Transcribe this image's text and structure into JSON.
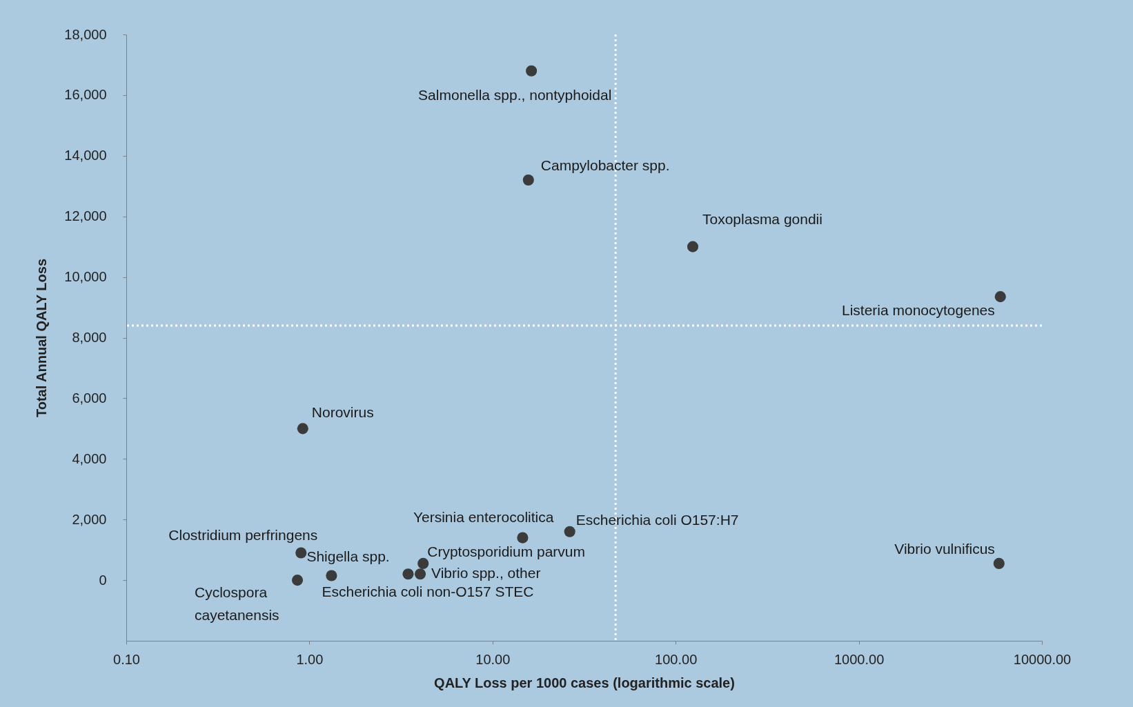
{
  "chart_data": {
    "type": "scatter",
    "xlabel": "QALY Loss per 1000 cases (logarithmic scale)",
    "ylabel": "Total Annual QALY Loss",
    "log": "x",
    "grid": false,
    "marker": "circle",
    "x": [
      16.3,
      15.7,
      124,
      5930,
      0.92,
      14.6,
      26.4,
      0.9,
      0.86,
      1.32,
      3.46,
      4.03,
      4.18,
      5830
    ],
    "series": [
      {
        "color": "#3b3b3b",
        "values": [
          16800,
          13200,
          11000,
          9350,
          5000,
          1400,
          1600,
          900,
          0,
          150,
          200,
          200,
          550,
          550
        ]
      }
    ],
    "xlim": [
      0.1,
      10000
    ],
    "ylim": [
      -2000,
      18000
    ],
    "xticks": [
      {
        "value": 0.1,
        "label": "0.10"
      },
      {
        "value": 1,
        "label": "1.00"
      },
      {
        "value": 10,
        "label": "10.00"
      },
      {
        "value": 100,
        "label": "100.00"
      },
      {
        "value": 1000,
        "label": "1000.00"
      },
      {
        "value": 10000,
        "label": "10000.00"
      }
    ],
    "yticks": [
      0,
      {
        "value": 2000,
        "label": "2,000"
      },
      {
        "value": 4000,
        "label": "4,000"
      },
      {
        "value": 6000,
        "label": "6,000"
      },
      {
        "value": 8000,
        "label": "8,000"
      },
      {
        "value": 10000,
        "label": "10,000"
      },
      {
        "value": 12000,
        "label": "12,000"
      },
      {
        "value": 14000,
        "label": "14,000"
      },
      {
        "value": 16000,
        "label": "16,000"
      },
      {
        "value": 18000,
        "label": "18,000"
      }
    ],
    "ref_lines": [
      {
        "axis": "x",
        "value": 47,
        "color": "#ffffff",
        "line_style": "dotted"
      },
      {
        "axis": "y",
        "value": 8400,
        "color": "#ffffff",
        "line_style": "dotted"
      }
    ],
    "annotations": [
      {
        "text": "Salmonella spp., nontyphoidal",
        "x": 16.3,
        "y": 16800
      },
      {
        "text": "Campylobacter spp.",
        "x": 15.7,
        "y": 13200
      },
      {
        "text": "Toxoplasma gondii",
        "x": 124,
        "y": 11000
      },
      {
        "text": "Listeria monocytogenes",
        "x": 5930,
        "y": 9350
      },
      {
        "text": "Norovirus",
        "x": 0.92,
        "y": 5000
      },
      {
        "text": "Yersinia enterocolitica",
        "x": 14.6,
        "y": 1400
      },
      {
        "text": "Escherichia coli O157:H7",
        "x": 26.4,
        "y": 1600
      },
      {
        "text": "Clostridium perfringens",
        "x": 0.9,
        "y": 900
      },
      {
        "text": "Cyclospora cayetanensis",
        "x": 0.86,
        "y": 0
      },
      {
        "text": "Shigella spp.",
        "x": 1.32,
        "y": 150
      },
      {
        "text": "Escherichia coli non-O157 STEC",
        "x": 3.46,
        "y": 200
      },
      {
        "text": "Vibrio spp., other",
        "x": 4.03,
        "y": 200
      },
      {
        "text": "Cryptosporidium parvum",
        "x": 4.18,
        "y": 550
      },
      {
        "text": "Vibrio vulnificus",
        "x": 5830,
        "y": 550
      }
    ]
  }
}
